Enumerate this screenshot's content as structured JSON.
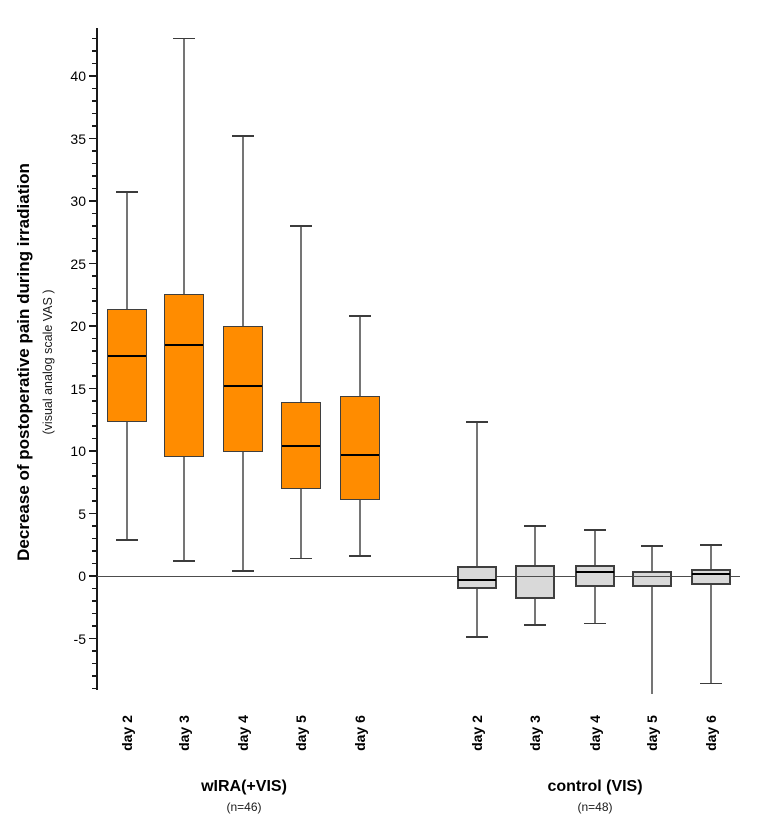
{
  "chart_data": {
    "type": "boxplot",
    "ylabel": "Decrease of postoperative pain during irradiation",
    "ylabel_sub": "(visual analog scale VAS )",
    "ylim": [
      -9.1,
      43.8
    ],
    "ytick_label_min": -5,
    "ytick_label_max": 40,
    "ytick_major_step": 5,
    "ytick_minor_step": 1,
    "grid": false,
    "zero_line": true,
    "legend_position": "none",
    "categories": [
      "day 2",
      "day 3",
      "day 4",
      "day 5",
      "day 6"
    ],
    "groups": [
      {
        "label": "wIRA(+VIS)",
        "sublabel": "(n=46)",
        "box_color": "#FF8C00",
        "boxes": [
          {
            "category": "day 2",
            "whisker_low": 2.9,
            "q1": 12.3,
            "median": 17.6,
            "q3": 21.4,
            "whisker_high": 30.7
          },
          {
            "category": "day 3",
            "whisker_low": 1.2,
            "q1": 9.5,
            "median": 18.5,
            "q3": 22.6,
            "whisker_high": 43.0
          },
          {
            "category": "day 4",
            "whisker_low": 0.4,
            "q1": 9.9,
            "median": 15.2,
            "q3": 20.0,
            "whisker_high": 35.2
          },
          {
            "category": "day 5",
            "whisker_low": 1.4,
            "q1": 7.0,
            "median": 10.4,
            "q3": 13.9,
            "whisker_high": 28.0
          },
          {
            "category": "day 6",
            "whisker_low": 1.6,
            "q1": 6.1,
            "median": 9.7,
            "q3": 14.4,
            "whisker_high": 20.8
          }
        ]
      },
      {
        "label": "control (VIS)",
        "sublabel": "(n=48)",
        "box_color": "#D9D9D9",
        "boxes": [
          {
            "category": "day 2",
            "whisker_low": -4.9,
            "q1": -1.0,
            "median": -0.3,
            "q3": 0.8,
            "whisker_high": 12.3
          },
          {
            "category": "day 3",
            "whisker_low": -3.9,
            "q1": -1.8,
            "median": 0,
            "q3": 0.9,
            "whisker_high": 4.0
          },
          {
            "category": "day 4",
            "whisker_low": -3.8,
            "q1": -0.9,
            "median": 0.3,
            "q3": 0.9,
            "whisker_high": 3.7
          },
          {
            "category": "day 5",
            "whisker_low": -9.4,
            "q1": -0.9,
            "median": 0,
            "q3": 0.4,
            "whisker_high": 2.4,
            "whisker_low_capped": false
          },
          {
            "category": "day 6",
            "whisker_low": -8.6,
            "q1": -0.7,
            "median": 0.2,
            "q3": 0.6,
            "whisker_high": 2.5
          }
        ]
      }
    ]
  },
  "colors": {
    "wira_box_fill": "#FF8C00",
    "control_box_fill": "#D9D9D9",
    "box_border": "#3f3f3f",
    "whisker": "#757575",
    "whisker_cap": "#3c3c3c",
    "axis": "#1a1a1a",
    "zero_line": "#4d4d4d",
    "background": "#ffffff"
  }
}
